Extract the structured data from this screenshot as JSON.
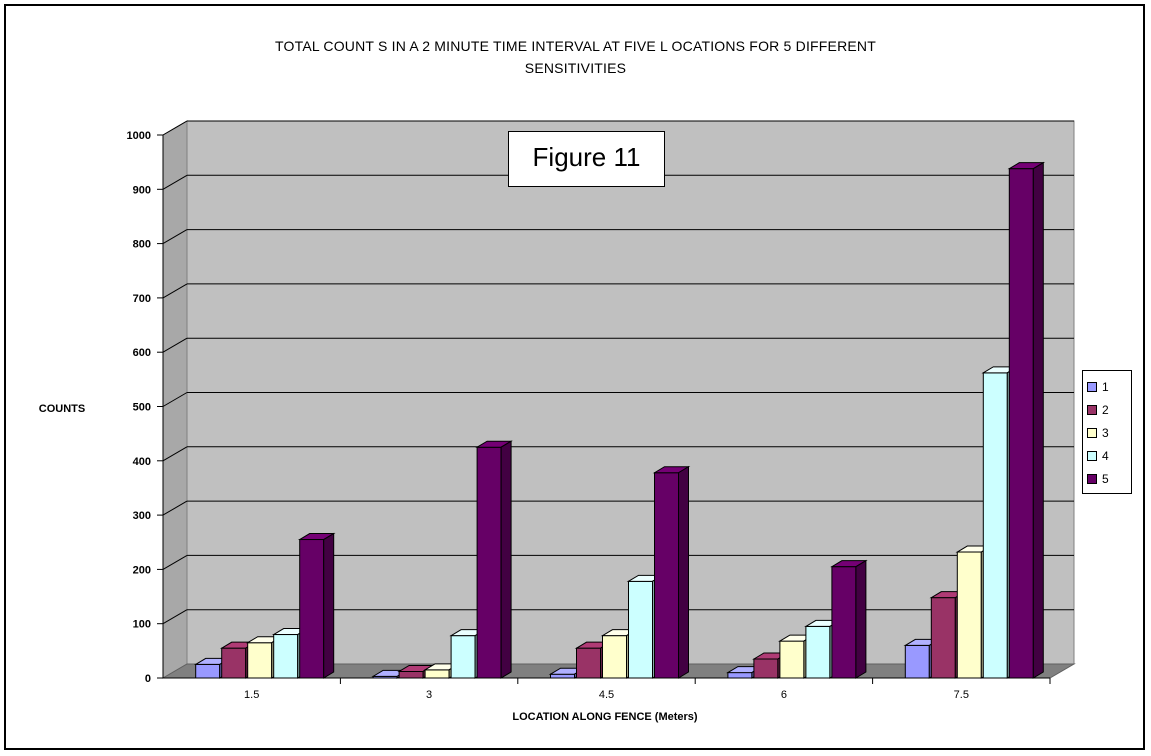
{
  "chart_data": {
    "type": "bar",
    "title": "TOTAL COUNT S IN A 2 MINUTE TIME INTERVAL AT FIVE L OCATIONS FOR 5 DIFFERENT",
    "subtitle": "SENSITIVITIES",
    "annotation": "Figure 11",
    "xlabel": "LOCATION ALONG FENCE (Meters)",
    "ylabel": "COUNTS",
    "ylim": [
      0,
      1000
    ],
    "yticks": [
      "0",
      "100",
      "200",
      "300",
      "400",
      "500",
      "600",
      "700",
      "800",
      "900",
      "1000"
    ],
    "categories": [
      "1.5",
      "3",
      "4.5",
      "6",
      "7.5"
    ],
    "series": [
      {
        "name": "1",
        "values": [
          25,
          3,
          7,
          10,
          60
        ],
        "color": "#9999ff"
      },
      {
        "name": "2",
        "values": [
          55,
          12,
          55,
          35,
          148
        ],
        "color": "#993366"
      },
      {
        "name": "3",
        "values": [
          65,
          15,
          78,
          68,
          232
        ],
        "color": "#ffffcc"
      },
      {
        "name": "4",
        "values": [
          80,
          78,
          178,
          95,
          562
        ],
        "color": "#ccffff"
      },
      {
        "name": "5",
        "values": [
          255,
          425,
          378,
          205,
          938
        ],
        "color": "#660066"
      }
    ],
    "grid": true,
    "legend_position": "right",
    "three_d": true,
    "wall_color": "#c0c0c0"
  }
}
